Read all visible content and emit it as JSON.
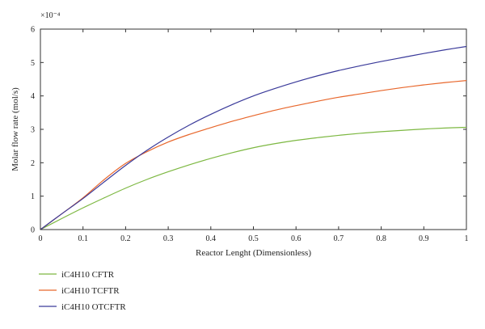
{
  "chart_data": {
    "type": "line",
    "title": "",
    "xlabel": "Reactor Lenght (Dimensionless)",
    "ylabel": "Molar flow rate (mol/s)",
    "y_multiplier": "×10⁻⁴",
    "xlim": [
      0,
      1
    ],
    "ylim": [
      0,
      6
    ],
    "x_ticks": [
      "0",
      "0.1",
      "0.2",
      "0.3",
      "0.4",
      "0.5",
      "0.6",
      "0.7",
      "0.8",
      "0.9",
      "1"
    ],
    "y_ticks": [
      "0",
      "1",
      "2",
      "3",
      "4",
      "5",
      "6"
    ],
    "grid": false,
    "legend_position": "bottom-left, below plot",
    "x": [
      0,
      0.05,
      0.1,
      0.15,
      0.2,
      0.25,
      0.3,
      0.35,
      0.4,
      0.45,
      0.5,
      0.55,
      0.6,
      0.65,
      0.7,
      0.75,
      0.8,
      0.85,
      0.9,
      0.95,
      1.0
    ],
    "series": [
      {
        "name": "iC4H10 CFTR",
        "color": "#7db842",
        "values": [
          0,
          0.33,
          0.65,
          0.95,
          1.24,
          1.5,
          1.73,
          1.94,
          2.13,
          2.3,
          2.45,
          2.57,
          2.67,
          2.75,
          2.82,
          2.88,
          2.93,
          2.97,
          3.01,
          3.04,
          3.06
        ]
      },
      {
        "name": "iC4H10 TCFTR",
        "color": "#e8672c",
        "values": [
          0,
          0.47,
          0.95,
          1.5,
          1.98,
          2.33,
          2.62,
          2.85,
          3.05,
          3.24,
          3.41,
          3.57,
          3.71,
          3.84,
          3.96,
          4.06,
          4.16,
          4.25,
          4.33,
          4.4,
          4.46
        ]
      },
      {
        "name": "iC4H10 OTCFTR",
        "color": "#3a3a9a",
        "values": [
          0,
          0.47,
          0.93,
          1.43,
          1.92,
          2.37,
          2.77,
          3.13,
          3.45,
          3.74,
          4.0,
          4.22,
          4.42,
          4.6,
          4.76,
          4.9,
          5.03,
          5.15,
          5.27,
          5.38,
          5.48
        ]
      }
    ]
  }
}
